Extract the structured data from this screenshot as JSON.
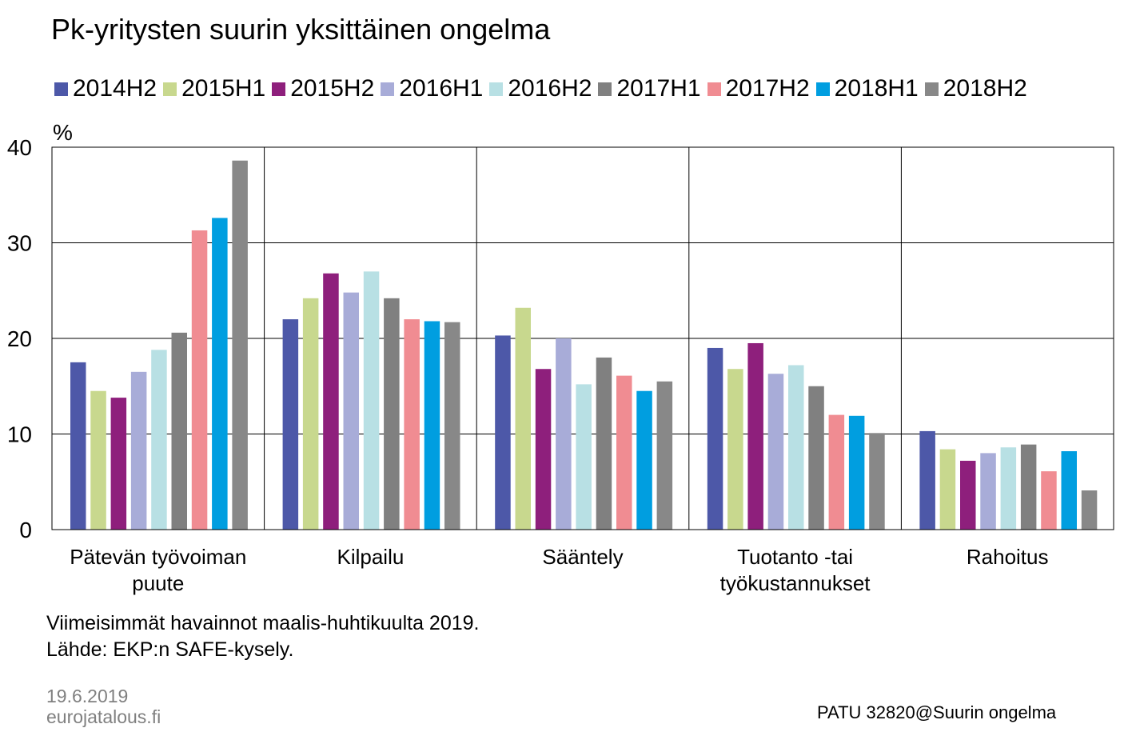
{
  "chart_data": {
    "type": "bar",
    "title": "Pk-yritysten suurin yksittäinen ongelma",
    "ylabel": "%",
    "ylim": [
      0,
      40
    ],
    "yticks": [
      "0",
      "10",
      "20",
      "30",
      "40"
    ],
    "grid": true,
    "legend_position": "top",
    "categories": [
      [
        "Pätevän työvoiman",
        "puute"
      ],
      [
        "Kilpailu"
      ],
      [
        "Sääntely"
      ],
      [
        "Tuotanto -tai",
        "työkustannukset"
      ],
      [
        "Rahoitus"
      ]
    ],
    "series": [
      {
        "name": "2014H2",
        "color": "#4D58A8",
        "values": [
          17.5,
          22.0,
          20.3,
          19.0,
          10.3
        ]
      },
      {
        "name": "2015H1",
        "color": "#C8D88E",
        "values": [
          14.5,
          24.2,
          23.2,
          16.8,
          8.4
        ]
      },
      {
        "name": "2015H2",
        "color": "#8E1F7C",
        "values": [
          13.8,
          26.8,
          16.8,
          19.5,
          7.2
        ]
      },
      {
        "name": "2016H1",
        "color": "#A8ACD8",
        "values": [
          16.5,
          24.8,
          20.0,
          16.3,
          8.0
        ]
      },
      {
        "name": "2016H2",
        "color": "#B8E0E4",
        "values": [
          18.8,
          27.0,
          15.2,
          17.2,
          8.6
        ]
      },
      {
        "name": "2017H1",
        "color": "#808080",
        "values": [
          20.6,
          24.2,
          18.0,
          15.0,
          8.9
        ]
      },
      {
        "name": "2017H2",
        "color": "#F08C92",
        "values": [
          31.3,
          22.0,
          16.1,
          12.0,
          6.1
        ]
      },
      {
        "name": "2018H1",
        "color": "#009EE0",
        "values": [
          32.6,
          21.8,
          14.5,
          11.9,
          8.2
        ]
      },
      {
        "name": "2018H2",
        "color": "#888888",
        "values": [
          38.6,
          21.7,
          15.5,
          10.1,
          4.1
        ]
      }
    ]
  },
  "notes": {
    "line1": "Viimeisimmät havainnot maalis-huhtikuulta 2019.",
    "line2": "Lähde: EKP:n SAFE-kysely."
  },
  "footer": {
    "date": "19.6.2019",
    "site": "eurojatalous.fi",
    "code": "PATU 32820@Suurin ongelma"
  }
}
